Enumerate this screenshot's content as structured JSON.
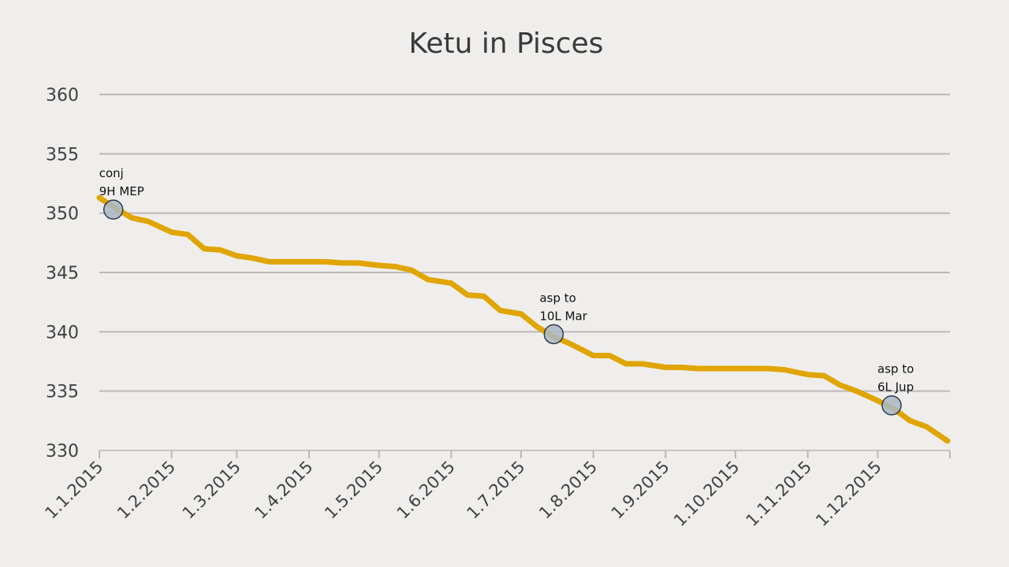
{
  "chart_data": {
    "type": "line",
    "title": "Ketu in Pisces",
    "xlabel": "",
    "ylabel": "",
    "ylim": [
      330,
      360
    ],
    "yticks": [
      330,
      335,
      340,
      345,
      350,
      355,
      360
    ],
    "x_tick_labels": [
      "1.1.2015",
      "1.2.2015",
      "1.3.2015",
      "1.4.2015",
      "1.5.2015",
      "1.6.2015",
      "1.7.2015",
      "1.8.2015",
      "1.9.2015",
      "1.10.2015",
      "1.11.2015",
      "1.12.2015"
    ],
    "grid": true,
    "legend": "none",
    "line_color": "#e0a500",
    "series": [
      {
        "x": [
          "2015-01-01",
          "2015-01-08",
          "2015-01-15",
          "2015-01-22",
          "2015-02-01",
          "2015-02-08",
          "2015-02-15",
          "2015-02-22",
          "2015-03-01",
          "2015-03-08",
          "2015-03-15",
          "2015-03-22",
          "2015-04-01",
          "2015-04-08",
          "2015-04-15",
          "2015-04-22",
          "2015-05-01",
          "2015-05-08",
          "2015-05-15",
          "2015-05-22",
          "2015-06-01",
          "2015-06-08",
          "2015-06-15",
          "2015-06-22",
          "2015-07-01",
          "2015-07-08",
          "2015-07-15",
          "2015-07-22",
          "2015-08-01",
          "2015-08-08",
          "2015-08-15",
          "2015-08-22",
          "2015-09-01",
          "2015-09-08",
          "2015-09-15",
          "2015-09-22",
          "2015-10-01",
          "2015-10-08",
          "2015-10-15",
          "2015-10-22",
          "2015-11-01",
          "2015-11-08",
          "2015-11-15",
          "2015-11-22",
          "2015-12-01",
          "2015-12-08",
          "2015-12-15",
          "2015-12-22",
          "2015-12-31"
        ],
        "values": [
          351.3,
          350.4,
          349.6,
          349.3,
          348.4,
          348.2,
          347.0,
          346.9,
          346.4,
          346.2,
          345.9,
          345.9,
          345.9,
          345.9,
          345.8,
          345.8,
          345.6,
          345.5,
          345.2,
          344.4,
          344.1,
          343.1,
          343.0,
          341.8,
          341.5,
          340.4,
          339.6,
          339.0,
          338.0,
          338.0,
          337.3,
          337.3,
          337.0,
          337.0,
          336.9,
          336.9,
          336.9,
          336.9,
          336.9,
          336.8,
          336.4,
          336.3,
          335.5,
          335.0,
          334.2,
          333.5,
          332.5,
          332.0,
          330.8
        ]
      }
    ],
    "annotations": [
      {
        "date": "2015-01-07",
        "y": 350.3,
        "label": [
          "conj",
          "9H MEP"
        ]
      },
      {
        "date": "2015-07-15",
        "y": 339.8,
        "label": [
          "asp to",
          "10L Mar"
        ]
      },
      {
        "date": "2015-12-07",
        "y": 333.8,
        "label": [
          "asp to",
          "6L Jup"
        ]
      }
    ]
  }
}
